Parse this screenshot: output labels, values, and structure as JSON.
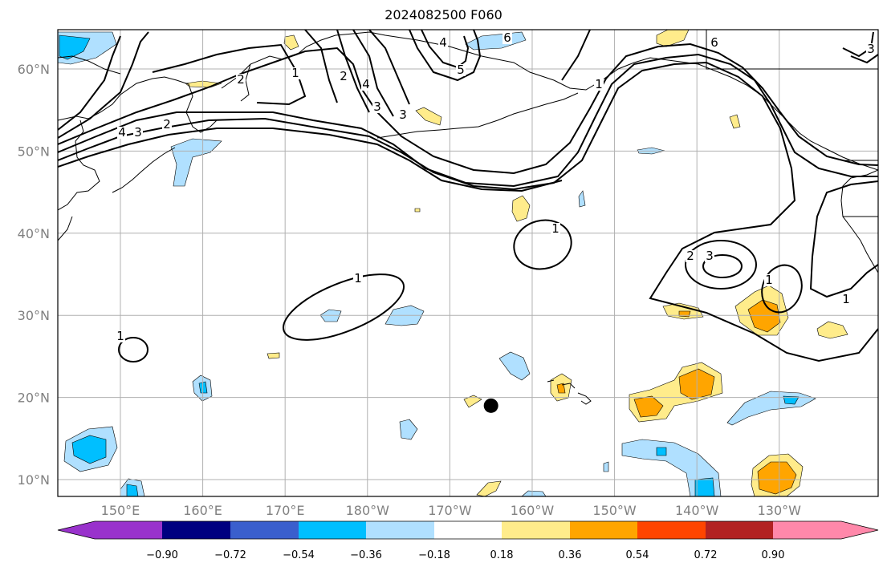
{
  "title": "2024082500 F060",
  "colors": {
    "c1": "#9932cc",
    "c2": "#000080",
    "c3": "#3a5fcd",
    "c4": "#00bfff",
    "c5": "#b0e0ff",
    "c6": "#ffffff",
    "c7": "#ffec8b",
    "c8": "#ffa500",
    "c9": "#ff4500",
    "c10": "#b22222",
    "c11": "#ff88aa",
    "grid": "#b0b0b0",
    "land": "#000000",
    "contour": "#000000"
  },
  "axes": {
    "lon_ticks": [
      "150°E",
      "160°E",
      "170°E",
      "180°W",
      "170°W",
      "160°W",
      "150°W",
      "140°W",
      "130°W"
    ],
    "lat_ticks": [
      "60°N",
      "50°N",
      "40°N",
      "30°N",
      "20°N",
      "10°N"
    ]
  },
  "colorbar": {
    "labels": [
      "−0.90",
      "−0.72",
      "−0.54",
      "−0.36",
      "−0.18",
      "0.18",
      "0.36",
      "0.54",
      "0.72",
      "0.90"
    ]
  },
  "contour_labels": [
    "4",
    "3",
    "2",
    "2",
    "1",
    "2",
    "4",
    "3",
    "3",
    "4",
    "6",
    "5",
    "6",
    "3",
    "1",
    "1",
    "2",
    "3",
    "1",
    "1",
    "1",
    "1"
  ],
  "marker": {
    "lon": -165,
    "lat": 19
  }
}
